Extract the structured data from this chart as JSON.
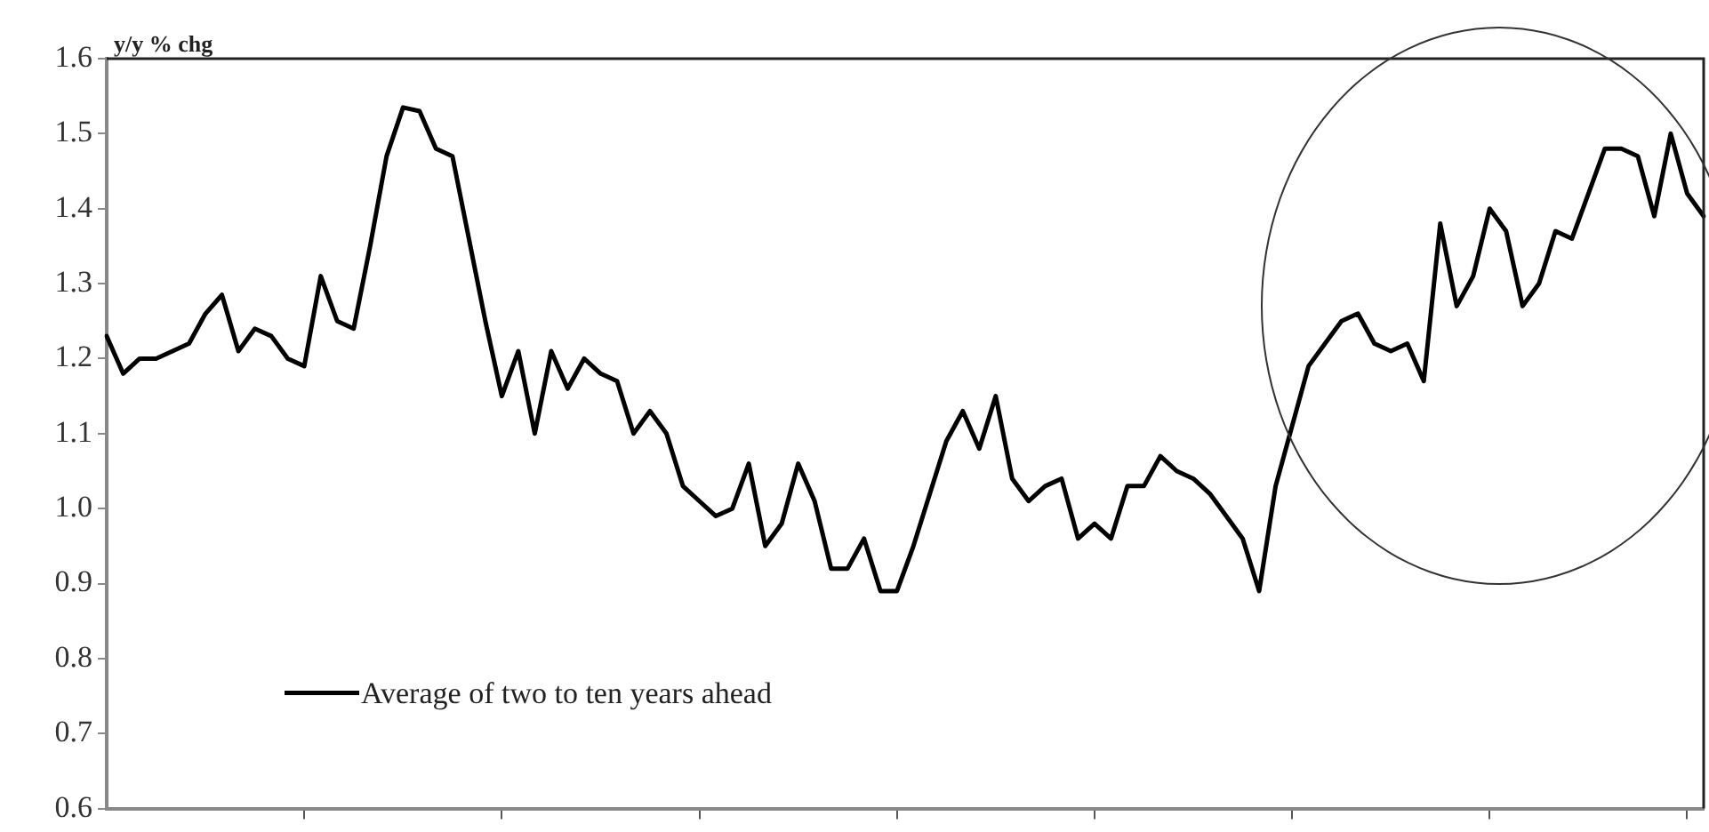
{
  "chart_data": {
    "type": "line",
    "ylabel": "y/y % chg",
    "categories": [
      null,
      null,
      null,
      null,
      null,
      null,
      null,
      null,
      null,
      null,
      null,
      null,
      null,
      null,
      null,
      null,
      null,
      null,
      null,
      null,
      null,
      null,
      null,
      null,
      null,
      null,
      null,
      null,
      null,
      null,
      null,
      null,
      null,
      null,
      null,
      null,
      null,
      null,
      null,
      null,
      null,
      null,
      null,
      null,
      null,
      null,
      null,
      null,
      null,
      null,
      null,
      null,
      null,
      null,
      null,
      null,
      null,
      null,
      null,
      null,
      null,
      null,
      null,
      null,
      null,
      null,
      null,
      null,
      null,
      null,
      null,
      null,
      null,
      null,
      null,
      null,
      null,
      null,
      null,
      null,
      null,
      null,
      null,
      null,
      null,
      null,
      null,
      null,
      null,
      null,
      null,
      null,
      null,
      null,
      null,
      null,
      null,
      null
    ],
    "series": [
      {
        "name": "Average of two to ten years ahead",
        "color": "#000000",
        "values": [
          1.23,
          1.18,
          1.2,
          1.2,
          1.21,
          1.22,
          1.26,
          1.285,
          1.21,
          1.24,
          1.23,
          1.2,
          1.19,
          1.31,
          1.25,
          1.24,
          1.35,
          1.47,
          1.535,
          1.53,
          1.48,
          1.47,
          1.36,
          1.25,
          1.15,
          1.21,
          1.1,
          1.21,
          1.16,
          1.2,
          1.18,
          1.17,
          1.1,
          1.13,
          1.1,
          1.03,
          1.01,
          0.99,
          1.0,
          1.06,
          0.95,
          0.98,
          1.06,
          1.01,
          0.92,
          0.92,
          0.96,
          0.89,
          0.89,
          0.95,
          1.02,
          1.09,
          1.13,
          1.08,
          1.15,
          1.04,
          1.01,
          1.03,
          1.04,
          0.96,
          0.98,
          0.96,
          1.03,
          1.03,
          1.07,
          1.05,
          1.04,
          1.02,
          0.99,
          0.96,
          0.89,
          1.03,
          1.11,
          1.19,
          1.22,
          1.25,
          1.26,
          1.22,
          1.21,
          1.22,
          1.17,
          1.38,
          1.27,
          1.31,
          1.4,
          1.37,
          1.27,
          1.3,
          1.37,
          1.36,
          1.42,
          1.48,
          1.48,
          1.47,
          1.39,
          1.5,
          1.42,
          1.39
        ]
      }
    ],
    "ylim": [
      0.6,
      1.6
    ],
    "yticks": [
      {
        "value": 0.6,
        "label": "0.6"
      },
      {
        "value": 0.7,
        "label": "0.7"
      },
      {
        "value": 0.8,
        "label": "0.8"
      },
      {
        "value": 0.9,
        "label": "0.9"
      },
      {
        "value": 1.0,
        "label": "1.0"
      },
      {
        "value": 1.1,
        "label": "1.1"
      },
      {
        "value": 1.2,
        "label": "1.2"
      },
      {
        "value": 1.3,
        "label": "1.3"
      },
      {
        "value": 1.4,
        "label": "1.4"
      },
      {
        "value": 1.5,
        "label": "1.5"
      },
      {
        "value": 1.6,
        "label": "1.6"
      }
    ],
    "tick_labels": "y",
    "grid": false,
    "legend": "bottom left",
    "marker": "none",
    "line_style": "solid"
  }
}
